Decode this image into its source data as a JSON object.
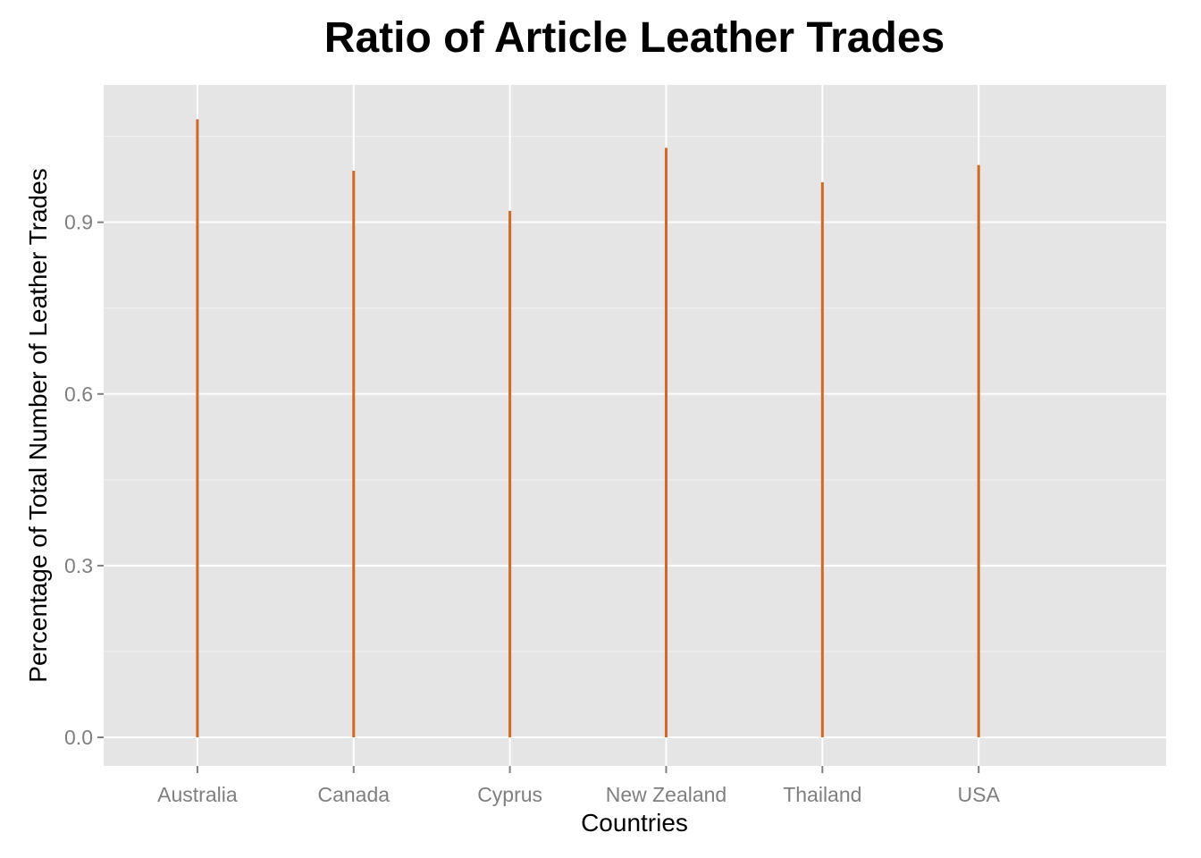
{
  "chart_data": {
    "type": "bar",
    "title": "Ratio of Article Leather Trades",
    "xlabel": "Countries",
    "ylabel": "Percentage of Total Number of Leather Trades",
    "categories": [
      "Australia",
      "Canada",
      "Cyprus",
      "New Zealand",
      "Thailand",
      "USA"
    ],
    "values": [
      1.08,
      0.99,
      0.92,
      1.03,
      0.97,
      1.0
    ],
    "yticks": [
      "0.0",
      "0.3",
      "0.6",
      "0.9"
    ],
    "ytick_values": [
      0.0,
      0.3,
      0.6,
      0.9
    ],
    "ylim": [
      -0.05,
      1.14
    ],
    "grid": true,
    "legend": "none",
    "colors": {
      "bar": "#d2691e",
      "panel": "#e5e5e5",
      "grid": "#ffffff"
    }
  }
}
